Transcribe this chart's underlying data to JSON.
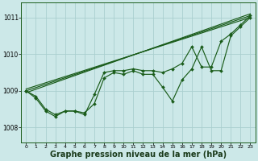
{
  "bg_color": "#cce8e8",
  "grid_color": "#aacfcf",
  "line_color": "#1a5c1a",
  "marker_color": "#1a5c1a",
  "xlabel": "Graphe pression niveau de la mer (hPa)",
  "xlabel_fontsize": 7,
  "xlim": [
    -0.5,
    23.5
  ],
  "ylim": [
    1007.6,
    1011.4
  ],
  "xticks": [
    0,
    1,
    2,
    3,
    4,
    5,
    6,
    7,
    8,
    9,
    10,
    11,
    12,
    13,
    14,
    15,
    16,
    17,
    18,
    19,
    20,
    21,
    22,
    23
  ],
  "yticks": [
    1008,
    1009,
    1010,
    1011
  ],
  "straight_lines": [
    [
      [
        0,
        23
      ],
      [
        1008.95,
        1011.1
      ]
    ],
    [
      [
        0,
        23
      ],
      [
        1009.0,
        1011.05
      ]
    ],
    [
      [
        0,
        23
      ],
      [
        1009.05,
        1011.0
      ]
    ]
  ],
  "jagged1": [
    1009.0,
    1008.85,
    1008.5,
    1008.35,
    1008.45,
    1008.45,
    1008.35,
    1008.9,
    1009.5,
    1009.55,
    1009.55,
    1009.6,
    1009.55,
    1009.55,
    1009.5,
    1009.6,
    1009.75,
    1010.2,
    1009.65,
    1009.65,
    1010.35,
    1010.55,
    1010.8,
    1011.05
  ],
  "jagged2": [
    1009.0,
    1008.8,
    1008.45,
    1008.3,
    1008.45,
    1008.45,
    1008.4,
    1008.65,
    1009.35,
    1009.5,
    1009.45,
    1009.55,
    1009.45,
    1009.45,
    1009.1,
    1008.72,
    1009.3,
    1009.6,
    1010.2,
    1009.55,
    1009.55,
    1010.5,
    1010.75,
    1011.0
  ]
}
